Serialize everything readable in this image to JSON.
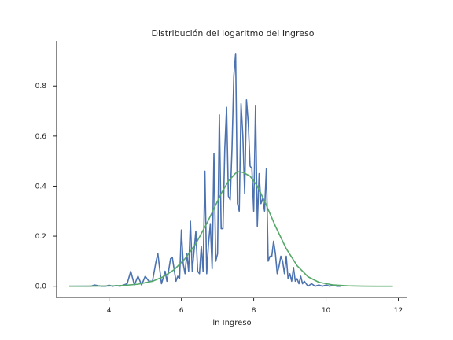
{
  "chart_data": {
    "type": "line",
    "title": "Distribución del logaritmo del Ingreso",
    "xlabel": "ln Ingreso",
    "ylabel": "",
    "xlim": [
      2.55,
      12.25
    ],
    "ylim": [
      -0.045,
      0.98
    ],
    "xticks": [
      {
        "value": 4,
        "label": "4"
      },
      {
        "value": 6,
        "label": "6"
      },
      {
        "value": 8,
        "label": "8"
      },
      {
        "value": 10,
        "label": "10"
      },
      {
        "value": 12,
        "label": "12"
      }
    ],
    "yticks": [
      {
        "value": 0.0,
        "label": "0.0"
      },
      {
        "value": 0.2,
        "label": "0.2"
      },
      {
        "value": 0.4,
        "label": "0.4"
      },
      {
        "value": 0.6,
        "label": "0.6"
      },
      {
        "value": 0.8,
        "label": "0.8"
      }
    ],
    "grid": false,
    "series": [
      {
        "color": "#4c72b0",
        "x": [
          2.9,
          3.2,
          3.5,
          3.6,
          3.7,
          3.8,
          3.9,
          4.0,
          4.1,
          4.2,
          4.3,
          4.4,
          4.5,
          4.6,
          4.7,
          4.8,
          4.9,
          5.0,
          5.1,
          5.2,
          5.3,
          5.35,
          5.45,
          5.55,
          5.6,
          5.7,
          5.75,
          5.85,
          5.9,
          5.95,
          6.0,
          6.05,
          6.1,
          6.15,
          6.2,
          6.25,
          6.3,
          6.35,
          6.4,
          6.45,
          6.5,
          6.55,
          6.6,
          6.65,
          6.7,
          6.75,
          6.8,
          6.85,
          6.9,
          6.95,
          7.0,
          7.05,
          7.1,
          7.15,
          7.2,
          7.25,
          7.3,
          7.35,
          7.4,
          7.45,
          7.5,
          7.55,
          7.6,
          7.65,
          7.7,
          7.75,
          7.8,
          7.85,
          7.9,
          7.95,
          8.0,
          8.05,
          8.1,
          8.15,
          8.2,
          8.25,
          8.3,
          8.35,
          8.4,
          8.45,
          8.5,
          8.55,
          8.6,
          8.65,
          8.7,
          8.75,
          8.8,
          8.85,
          8.9,
          8.95,
          9.0,
          9.05,
          9.1,
          9.15,
          9.2,
          9.25,
          9.3,
          9.35,
          9.4,
          9.5,
          9.6,
          9.7,
          9.8,
          9.9,
          10.0,
          10.1,
          10.2,
          10.3,
          10.4
        ],
        "values": [
          0.0,
          0.0,
          0.0,
          0.005,
          0.002,
          0.0,
          0.0,
          0.004,
          0.0,
          0.003,
          0.0,
          0.005,
          0.01,
          0.06,
          0.005,
          0.04,
          0.005,
          0.04,
          0.02,
          0.02,
          0.1,
          0.13,
          0.01,
          0.06,
          0.02,
          0.11,
          0.115,
          0.02,
          0.04,
          0.03,
          0.225,
          0.09,
          0.05,
          0.13,
          0.06,
          0.26,
          0.06,
          0.14,
          0.22,
          0.06,
          0.05,
          0.16,
          0.06,
          0.46,
          0.05,
          0.17,
          0.25,
          0.07,
          0.53,
          0.1,
          0.13,
          0.685,
          0.23,
          0.23,
          0.55,
          0.715,
          0.36,
          0.345,
          0.55,
          0.84,
          0.93,
          0.33,
          0.3,
          0.73,
          0.6,
          0.37,
          0.745,
          0.65,
          0.48,
          0.47,
          0.3,
          0.72,
          0.24,
          0.45,
          0.33,
          0.35,
          0.3,
          0.47,
          0.1,
          0.12,
          0.12,
          0.18,
          0.13,
          0.05,
          0.08,
          0.12,
          0.1,
          0.05,
          0.12,
          0.03,
          0.05,
          0.02,
          0.075,
          0.02,
          0.03,
          0.01,
          0.04,
          0.01,
          0.02,
          0.0,
          0.01,
          0.0,
          0.005,
          0.0,
          0.005,
          0.0,
          0.005,
          0.0,
          0.0
        ]
      },
      {
        "color": "#55a868",
        "x": [
          2.9,
          3.5,
          4.0,
          4.4,
          4.8,
          5.2,
          5.5,
          5.8,
          6.1,
          6.4,
          6.7,
          6.9,
          7.1,
          7.3,
          7.5,
          7.6,
          7.7,
          7.9,
          8.1,
          8.3,
          8.6,
          8.9,
          9.2,
          9.5,
          9.8,
          10.2,
          10.6,
          11.0,
          11.4,
          11.85
        ],
        "values": [
          0.0,
          0.0003,
          0.001,
          0.003,
          0.008,
          0.02,
          0.038,
          0.066,
          0.11,
          0.17,
          0.25,
          0.31,
          0.37,
          0.42,
          0.452,
          0.458,
          0.455,
          0.44,
          0.4,
          0.34,
          0.24,
          0.15,
          0.082,
          0.038,
          0.016,
          0.005,
          0.0015,
          0.0004,
          0.0001,
          0.0
        ]
      }
    ]
  }
}
